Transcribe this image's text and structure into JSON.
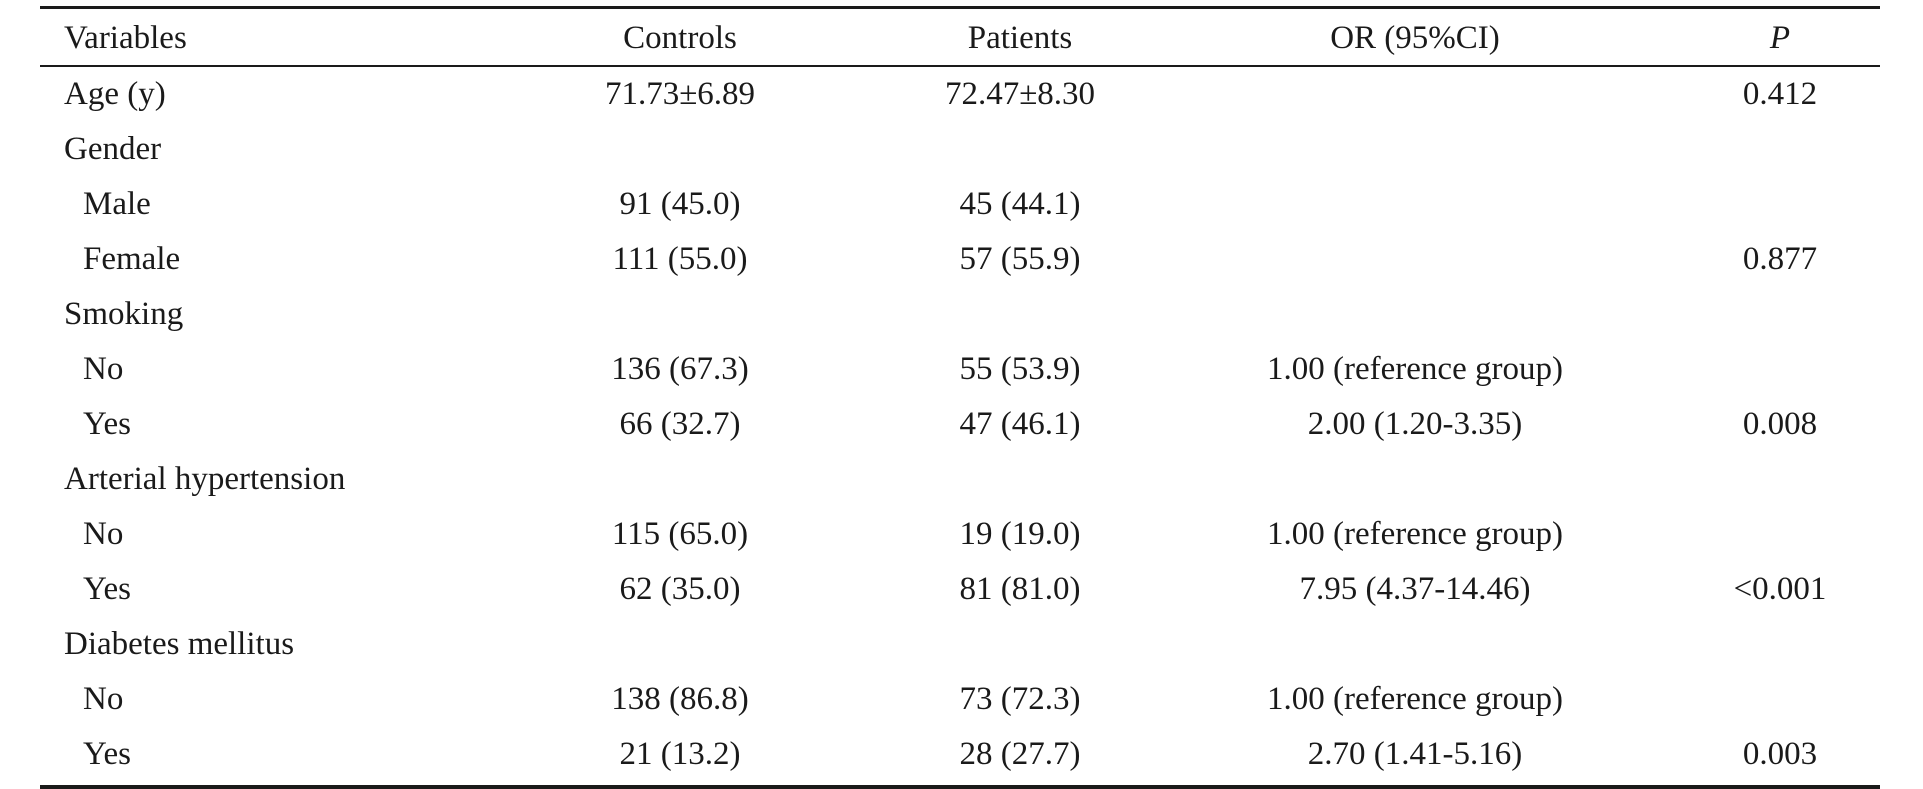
{
  "table": {
    "headers": {
      "variables": "Variables",
      "controls": "Controls",
      "patients": "Patients",
      "or": "OR (95%CI)",
      "p": "P"
    },
    "rows": [
      {
        "variable": "Age (y)",
        "controls": "71.73±6.89",
        "patients": "72.47±8.30",
        "or": "",
        "p": "0.412",
        "indent": false
      },
      {
        "variable": "Gender",
        "controls": "",
        "patients": "",
        "or": "",
        "p": "",
        "indent": false
      },
      {
        "variable": "Male",
        "controls": "91 (45.0)",
        "patients": "45 (44.1)",
        "or": "",
        "p": "",
        "indent": true
      },
      {
        "variable": "Female",
        "controls": "111 (55.0)",
        "patients": "57 (55.9)",
        "or": "",
        "p": "0.877",
        "indent": true
      },
      {
        "variable": "Smoking",
        "controls": "",
        "patients": "",
        "or": "",
        "p": "",
        "indent": false
      },
      {
        "variable": "No",
        "controls": "136 (67.3)",
        "patients": "55 (53.9)",
        "or": "1.00 (reference group)",
        "p": "",
        "indent": true
      },
      {
        "variable": "Yes",
        "controls": "66 (32.7)",
        "patients": "47 (46.1)",
        "or": "2.00 (1.20-3.35)",
        "p": "0.008",
        "indent": true
      },
      {
        "variable": "Arterial hypertension",
        "controls": "",
        "patients": "",
        "or": "",
        "p": "",
        "indent": false
      },
      {
        "variable": "No",
        "controls": "115 (65.0)",
        "patients": "19 (19.0)",
        "or": "1.00 (reference group)",
        "p": "",
        "indent": true
      },
      {
        "variable": "Yes",
        "controls": "62 (35.0)",
        "patients": "81 (81.0)",
        "or": "7.95 (4.37-14.46)",
        "p": "<0.001",
        "indent": true
      },
      {
        "variable": "Diabetes mellitus",
        "controls": "",
        "patients": "",
        "or": "",
        "p": "",
        "indent": false
      },
      {
        "variable": "No",
        "controls": "138 (86.8)",
        "patients": "73 (72.3)",
        "or": "1.00 (reference group)",
        "p": "",
        "indent": true
      },
      {
        "variable": "Yes",
        "controls": "21 (13.2)",
        "patients": "28 (27.7)",
        "or": "2.70 (1.41-5.16)",
        "p": "0.003",
        "indent": true
      }
    ]
  }
}
